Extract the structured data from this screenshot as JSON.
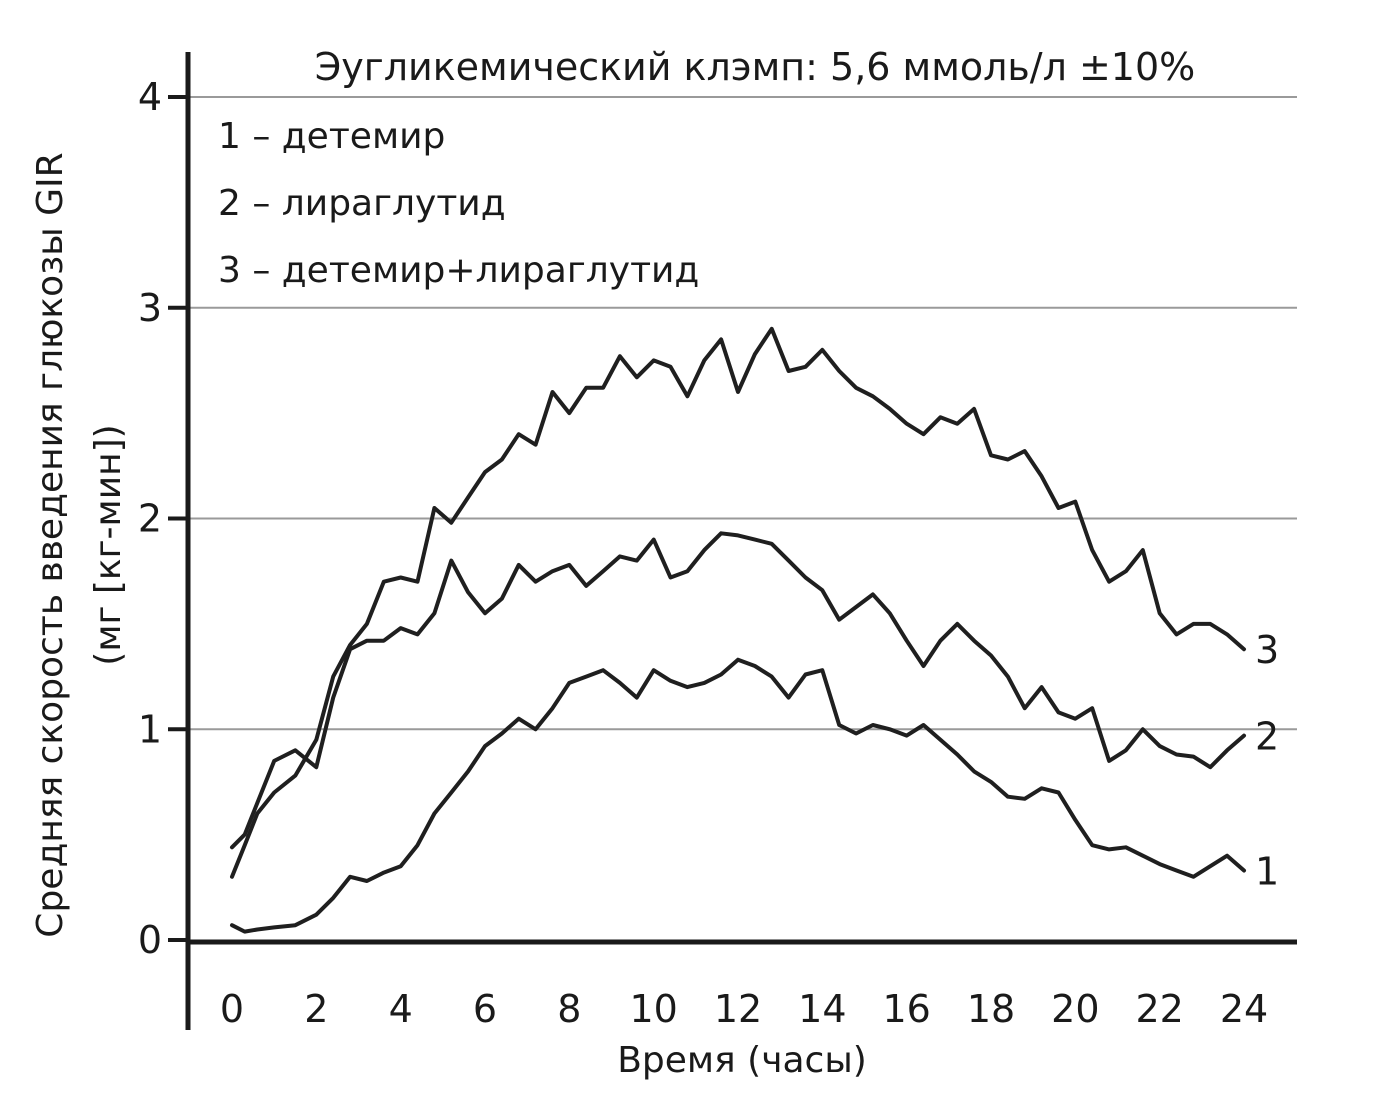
{
  "chart_data": {
    "type": "line",
    "title": "Эугликемический клэмп: 5,6 ммоль/л ±10%",
    "xlabel": "Время (часы)",
    "ylabel_lines": [
      "Средняя скорость введения глюкозы GIR",
      "(мг [кг-мин])"
    ],
    "xlim": [
      0,
      24
    ],
    "ylim": [
      0,
      4
    ],
    "x_ticks": [
      "0",
      "2",
      "4",
      "6",
      "8",
      "10",
      "12",
      "14",
      "16",
      "18",
      "20",
      "22",
      "24"
    ],
    "y_ticks": [
      "0",
      "1",
      "2",
      "3",
      "4"
    ],
    "grid": "horizontal",
    "legend_entries": [
      "1 – детемир",
      "2 – лираглутид",
      "3 – детемир+лираглутид"
    ],
    "legend_position": "top-left",
    "series": [
      {
        "name": "1",
        "label": "1",
        "x": [
          0,
          0.3,
          0.6,
          1,
          1.5,
          2,
          2.4,
          2.8,
          3.2,
          3.6,
          4,
          4.4,
          4.8,
          5.2,
          5.6,
          6,
          6.4,
          6.8,
          7.2,
          7.6,
          8,
          8.4,
          8.8,
          9.2,
          9.6,
          10,
          10.4,
          10.8,
          11.2,
          11.6,
          12,
          12.4,
          12.8,
          13.2,
          13.6,
          14,
          14.4,
          14.8,
          15.2,
          15.6,
          16,
          16.4,
          16.8,
          17.2,
          17.6,
          18,
          18.4,
          18.8,
          19.2,
          19.6,
          20,
          20.4,
          20.8,
          21.2,
          21.6,
          22,
          22.4,
          22.8,
          23.2,
          23.6,
          24
        ],
        "y": [
          0.07,
          0.04,
          0.05,
          0.06,
          0.07,
          0.12,
          0.2,
          0.3,
          0.28,
          0.32,
          0.35,
          0.45,
          0.6,
          0.7,
          0.8,
          0.92,
          0.98,
          1.05,
          1.0,
          1.1,
          1.22,
          1.25,
          1.28,
          1.22,
          1.15,
          1.28,
          1.23,
          1.2,
          1.22,
          1.26,
          1.33,
          1.3,
          1.25,
          1.15,
          1.26,
          1.28,
          1.02,
          0.98,
          1.02,
          1.0,
          0.97,
          1.02,
          0.95,
          0.88,
          0.8,
          0.75,
          0.68,
          0.67,
          0.72,
          0.7,
          0.57,
          0.45,
          0.43,
          0.44,
          0.4,
          0.36,
          0.33,
          0.3,
          0.35,
          0.4,
          0.33
        ]
      },
      {
        "name": "2",
        "label": "2",
        "x": [
          0,
          0.3,
          0.6,
          1,
          1.5,
          2,
          2.4,
          2.8,
          3.2,
          3.6,
          4,
          4.4,
          4.8,
          5.2,
          5.6,
          6,
          6.4,
          6.8,
          7.2,
          7.6,
          8,
          8.4,
          8.8,
          9.2,
          9.6,
          10,
          10.4,
          10.8,
          11.2,
          11.6,
          12,
          12.4,
          12.8,
          13.2,
          13.6,
          14,
          14.4,
          14.8,
          15.2,
          15.6,
          16,
          16.4,
          16.8,
          17.2,
          17.6,
          18,
          18.4,
          18.8,
          19.2,
          19.6,
          20,
          20.4,
          20.8,
          21.2,
          21.6,
          22,
          22.4,
          22.8,
          23.2,
          23.6,
          24
        ],
        "y": [
          0.44,
          0.5,
          0.65,
          0.85,
          0.9,
          0.82,
          1.15,
          1.38,
          1.42,
          1.42,
          1.48,
          1.45,
          1.55,
          1.8,
          1.65,
          1.55,
          1.62,
          1.78,
          1.7,
          1.75,
          1.78,
          1.68,
          1.75,
          1.82,
          1.8,
          1.9,
          1.72,
          1.75,
          1.85,
          1.93,
          1.92,
          1.9,
          1.88,
          1.8,
          1.72,
          1.66,
          1.52,
          1.58,
          1.64,
          1.55,
          1.42,
          1.3,
          1.42,
          1.5,
          1.42,
          1.35,
          1.25,
          1.1,
          1.2,
          1.08,
          1.05,
          1.1,
          0.85,
          0.9,
          1.0,
          0.92,
          0.88,
          0.87,
          0.82,
          0.9,
          0.97
        ]
      },
      {
        "name": "3",
        "label": "3",
        "x": [
          0,
          0.3,
          0.6,
          1,
          1.5,
          2,
          2.4,
          2.8,
          3.2,
          3.6,
          4,
          4.4,
          4.8,
          5.2,
          5.6,
          6,
          6.4,
          6.8,
          7.2,
          7.6,
          8,
          8.4,
          8.8,
          9.2,
          9.6,
          10,
          10.4,
          10.8,
          11.2,
          11.6,
          12,
          12.4,
          12.8,
          13.2,
          13.6,
          14,
          14.4,
          14.8,
          15.2,
          15.6,
          16,
          16.4,
          16.8,
          17.2,
          17.6,
          18,
          18.4,
          18.8,
          19.2,
          19.6,
          20,
          20.4,
          20.8,
          21.2,
          21.6,
          22,
          22.4,
          22.8,
          23.2,
          23.6,
          24
        ],
        "y": [
          0.3,
          0.45,
          0.6,
          0.7,
          0.78,
          0.95,
          1.25,
          1.4,
          1.5,
          1.7,
          1.72,
          1.7,
          2.05,
          1.98,
          2.1,
          2.22,
          2.28,
          2.4,
          2.35,
          2.6,
          2.5,
          2.62,
          2.62,
          2.77,
          2.67,
          2.75,
          2.72,
          2.58,
          2.75,
          2.85,
          2.6,
          2.78,
          2.9,
          2.7,
          2.72,
          2.8,
          2.7,
          2.62,
          2.58,
          2.52,
          2.45,
          2.4,
          2.48,
          2.45,
          2.52,
          2.3,
          2.28,
          2.32,
          2.2,
          2.05,
          2.08,
          1.85,
          1.7,
          1.75,
          1.85,
          1.55,
          1.45,
          1.5,
          1.5,
          1.45,
          1.38
        ]
      }
    ]
  }
}
